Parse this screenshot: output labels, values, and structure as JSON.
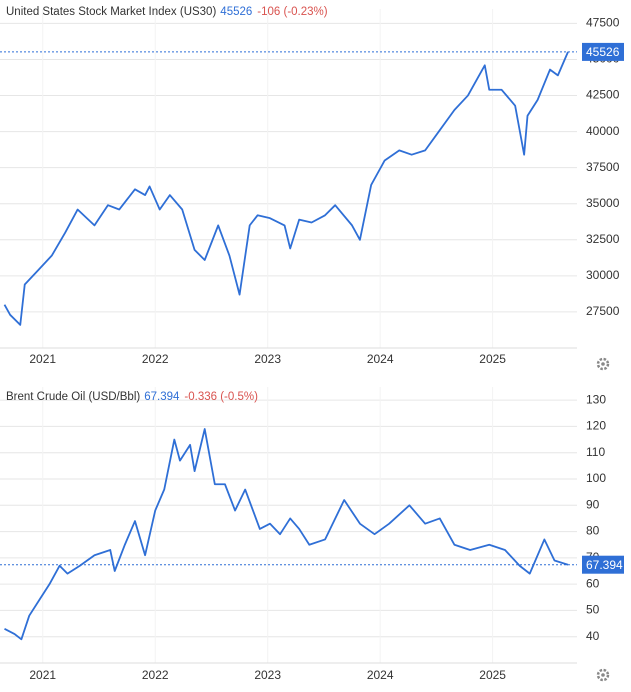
{
  "chart_data": [
    {
      "type": "line",
      "title": "United States Stock Market Index (US30)",
      "price": 45526,
      "change": "-106 (-0.23%)",
      "x": [
        2020.66,
        2020.71,
        2020.8,
        2020.84,
        2020.96,
        2021.08,
        2021.2,
        2021.31,
        2021.46,
        2021.58,
        2021.68,
        2021.82,
        2021.91,
        2021.95,
        2022.04,
        2022.13,
        2022.24,
        2022.35,
        2022.44,
        2022.56,
        2022.66,
        2022.75,
        2022.84,
        2022.91,
        2023.02,
        2023.15,
        2023.2,
        2023.28,
        2023.39,
        2023.51,
        2023.6,
        2023.75,
        2023.82,
        2023.92,
        2024.04,
        2024.17,
        2024.28,
        2024.4,
        2024.53,
        2024.66,
        2024.78,
        2024.93,
        2024.97,
        2025.08,
        2025.2,
        2025.28,
        2025.31,
        2025.4,
        2025.51,
        2025.58,
        2025.67
      ],
      "series": [
        {
          "color": "#2f6fd6",
          "values": [
            28000,
            27300,
            26600,
            29400,
            30400,
            31400,
            33000,
            34600,
            33500,
            34900,
            34600,
            36000,
            35600,
            36200,
            34600,
            35600,
            34600,
            31800,
            31100,
            33500,
            31400,
            28700,
            33500,
            34200,
            34000,
            33500,
            31900,
            33900,
            33700,
            34200,
            34900,
            33500,
            32500,
            36300,
            38000,
            38700,
            38400,
            38700,
            40100,
            41500,
            42500,
            44600,
            42900,
            42900,
            41800,
            38400,
            41100,
            42200,
            44300,
            43900,
            45526
          ]
        }
      ],
      "xlim": [
        2020.62,
        2025.75
      ],
      "xticks": [
        2021,
        2022,
        2023,
        2024,
        2025
      ],
      "ylim": [
        25000,
        48500
      ],
      "yticks": [
        27500,
        30000,
        32500,
        35000,
        37500,
        40000,
        42500,
        45000,
        47500
      ],
      "grid": true
    },
    {
      "type": "line",
      "title": "Brent Crude Oil (USD/Bbl)",
      "price": 67.394,
      "change": "-0.336 (-0.5%)",
      "x": [
        2020.66,
        2020.75,
        2020.81,
        2020.88,
        2020.97,
        2021.06,
        2021.15,
        2021.22,
        2021.33,
        2021.46,
        2021.6,
        2021.64,
        2021.73,
        2021.82,
        2021.91,
        2022.0,
        2022.08,
        2022.17,
        2022.22,
        2022.31,
        2022.35,
        2022.44,
        2022.53,
        2022.62,
        2022.71,
        2022.8,
        2022.93,
        2023.02,
        2023.11,
        2023.2,
        2023.28,
        2023.37,
        2023.51,
        2023.68,
        2023.82,
        2023.95,
        2024.08,
        2024.26,
        2024.4,
        2024.53,
        2024.66,
        2024.8,
        2024.97,
        2025.11,
        2025.24,
        2025.33,
        2025.46,
        2025.55,
        2025.67
      ],
      "series": [
        {
          "color": "#2f6fd6",
          "values": [
            43,
            41,
            39,
            48,
            54,
            60,
            67,
            64,
            67,
            71,
            73,
            65,
            75,
            84,
            71,
            88,
            96,
            115,
            107,
            113,
            103,
            119,
            98,
            98,
            88,
            96,
            81,
            83,
            79,
            85,
            81,
            75,
            77,
            92,
            83,
            79,
            83,
            90,
            83,
            85,
            75,
            73,
            75,
            73,
            67,
            64,
            77,
            69,
            67.394
          ]
        }
      ],
      "xlim": [
        2020.62,
        2025.75
      ],
      "xticks": [
        2021,
        2022,
        2023,
        2024,
        2025
      ],
      "ylim": [
        30,
        135
      ],
      "yticks": [
        40,
        50,
        60,
        70,
        80,
        90,
        100,
        110,
        120,
        130
      ],
      "grid": true
    }
  ]
}
